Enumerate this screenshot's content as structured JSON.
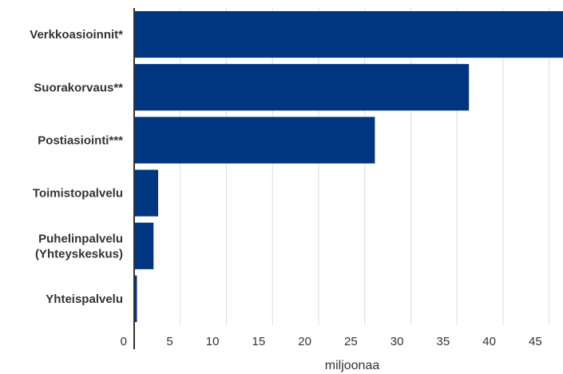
{
  "chart_data": {
    "type": "bar",
    "orientation": "horizontal",
    "categories": [
      [
        "Verkkoasioinnit*"
      ],
      [
        "Suorakorvaus**"
      ],
      [
        "Postiasiointi***"
      ],
      [
        "Toimistopalvelu"
      ],
      [
        "Puhelinpalvelu",
        "(Yhteyskeskus)"
      ],
      [
        "Yhteispalvelu"
      ]
    ],
    "values": [
      46.5,
      36.3,
      26.1,
      2.6,
      2.1,
      0.3
    ],
    "xlabel": "miljoonaa",
    "ylabel": "",
    "xlim": [
      0,
      46.5
    ],
    "xticks": [
      0,
      5,
      10,
      15,
      20,
      25,
      30,
      35,
      40,
      45
    ],
    "grid": true,
    "bar_color": "#003580",
    "grid_color": "#dddddd",
    "axis_color": "#333333"
  }
}
